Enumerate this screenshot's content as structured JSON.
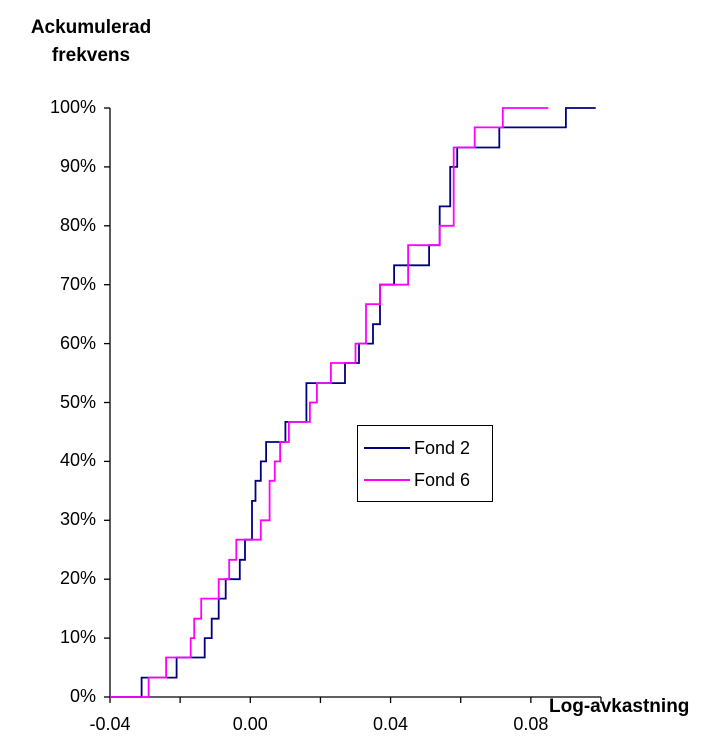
{
  "chart_data": {
    "type": "line",
    "ylabel": "Ackumulerad\nfrekvens",
    "xlabel": "Log-avkastning",
    "xlim": [
      -0.04,
      0.1
    ],
    "ylim": [
      0,
      100
    ],
    "x_ticks": [
      "-0.04",
      "0.00",
      "0.04",
      "0.08"
    ],
    "y_ticks": [
      "0%",
      "10%",
      "20%",
      "30%",
      "40%",
      "50%",
      "60%",
      "70%",
      "80%",
      "90%",
      "100%"
    ],
    "grid": false,
    "legend_position": "center-right",
    "series": [
      {
        "name": "Fond 2",
        "color": "#000080",
        "points": [
          [
            -0.04,
            0
          ],
          [
            -0.031,
            0
          ],
          [
            -0.031,
            3.3
          ],
          [
            -0.021,
            3.3
          ],
          [
            -0.021,
            6.7
          ],
          [
            -0.013,
            6.7
          ],
          [
            -0.013,
            10
          ],
          [
            -0.011,
            10
          ],
          [
            -0.011,
            13.3
          ],
          [
            -0.009,
            13.3
          ],
          [
            -0.009,
            16.7
          ],
          [
            -0.007,
            16.7
          ],
          [
            -0.007,
            20
          ],
          [
            -0.003,
            20
          ],
          [
            -0.003,
            23.3
          ],
          [
            -0.0015,
            23.3
          ],
          [
            -0.0015,
            26.7
          ],
          [
            0.0005,
            26.7
          ],
          [
            0.0005,
            33.3
          ],
          [
            0.0015,
            33.3
          ],
          [
            0.0015,
            36.7
          ],
          [
            0.003,
            36.7
          ],
          [
            0.003,
            40
          ],
          [
            0.0045,
            40
          ],
          [
            0.0045,
            43.3
          ],
          [
            0.01,
            43.3
          ],
          [
            0.01,
            46.7
          ],
          [
            0.016,
            46.7
          ],
          [
            0.016,
            53.3
          ],
          [
            0.027,
            53.3
          ],
          [
            0.027,
            56.7
          ],
          [
            0.031,
            56.7
          ],
          [
            0.031,
            60
          ],
          [
            0.035,
            60
          ],
          [
            0.035,
            63.3
          ],
          [
            0.037,
            63.3
          ],
          [
            0.037,
            70
          ],
          [
            0.041,
            70
          ],
          [
            0.041,
            73.3
          ],
          [
            0.051,
            73.3
          ],
          [
            0.051,
            76.7
          ],
          [
            0.054,
            76.7
          ],
          [
            0.054,
            83.3
          ],
          [
            0.057,
            83.3
          ],
          [
            0.057,
            90
          ],
          [
            0.059,
            90
          ],
          [
            0.059,
            93.3
          ],
          [
            0.071,
            93.3
          ],
          [
            0.071,
            96.7
          ],
          [
            0.09,
            96.7
          ],
          [
            0.09,
            100
          ],
          [
            0.0985,
            100
          ]
        ]
      },
      {
        "name": "Fond 6",
        "color": "#ff00ff",
        "points": [
          [
            -0.04,
            0
          ],
          [
            -0.029,
            0
          ],
          [
            -0.029,
            3.3
          ],
          [
            -0.024,
            3.3
          ],
          [
            -0.024,
            6.7
          ],
          [
            -0.017,
            6.7
          ],
          [
            -0.017,
            10
          ],
          [
            -0.016,
            10
          ],
          [
            -0.016,
            13.3
          ],
          [
            -0.014,
            13.3
          ],
          [
            -0.014,
            16.7
          ],
          [
            -0.009,
            16.7
          ],
          [
            -0.009,
            20
          ],
          [
            -0.006,
            20
          ],
          [
            -0.006,
            23.3
          ],
          [
            -0.004,
            23.3
          ],
          [
            -0.004,
            26.7
          ],
          [
            0.003,
            26.7
          ],
          [
            0.003,
            30
          ],
          [
            0.0055,
            30
          ],
          [
            0.0055,
            36.7
          ],
          [
            0.007,
            36.7
          ],
          [
            0.007,
            40
          ],
          [
            0.0085,
            40
          ],
          [
            0.0085,
            43.3
          ],
          [
            0.011,
            43.3
          ],
          [
            0.011,
            46.7
          ],
          [
            0.017,
            46.7
          ],
          [
            0.017,
            50
          ],
          [
            0.019,
            50
          ],
          [
            0.019,
            53.3
          ],
          [
            0.023,
            53.3
          ],
          [
            0.023,
            56.7
          ],
          [
            0.03,
            56.7
          ],
          [
            0.03,
            60
          ],
          [
            0.033,
            60
          ],
          [
            0.033,
            66.7
          ],
          [
            0.037,
            66.7
          ],
          [
            0.037,
            70
          ],
          [
            0.045,
            70
          ],
          [
            0.045,
            76.7
          ],
          [
            0.054,
            76.7
          ],
          [
            0.054,
            80
          ],
          [
            0.058,
            80
          ],
          [
            0.058,
            93.3
          ],
          [
            0.064,
            93.3
          ],
          [
            0.064,
            96.7
          ],
          [
            0.072,
            96.7
          ],
          [
            0.072,
            100
          ],
          [
            0.085,
            100
          ]
        ]
      }
    ]
  }
}
